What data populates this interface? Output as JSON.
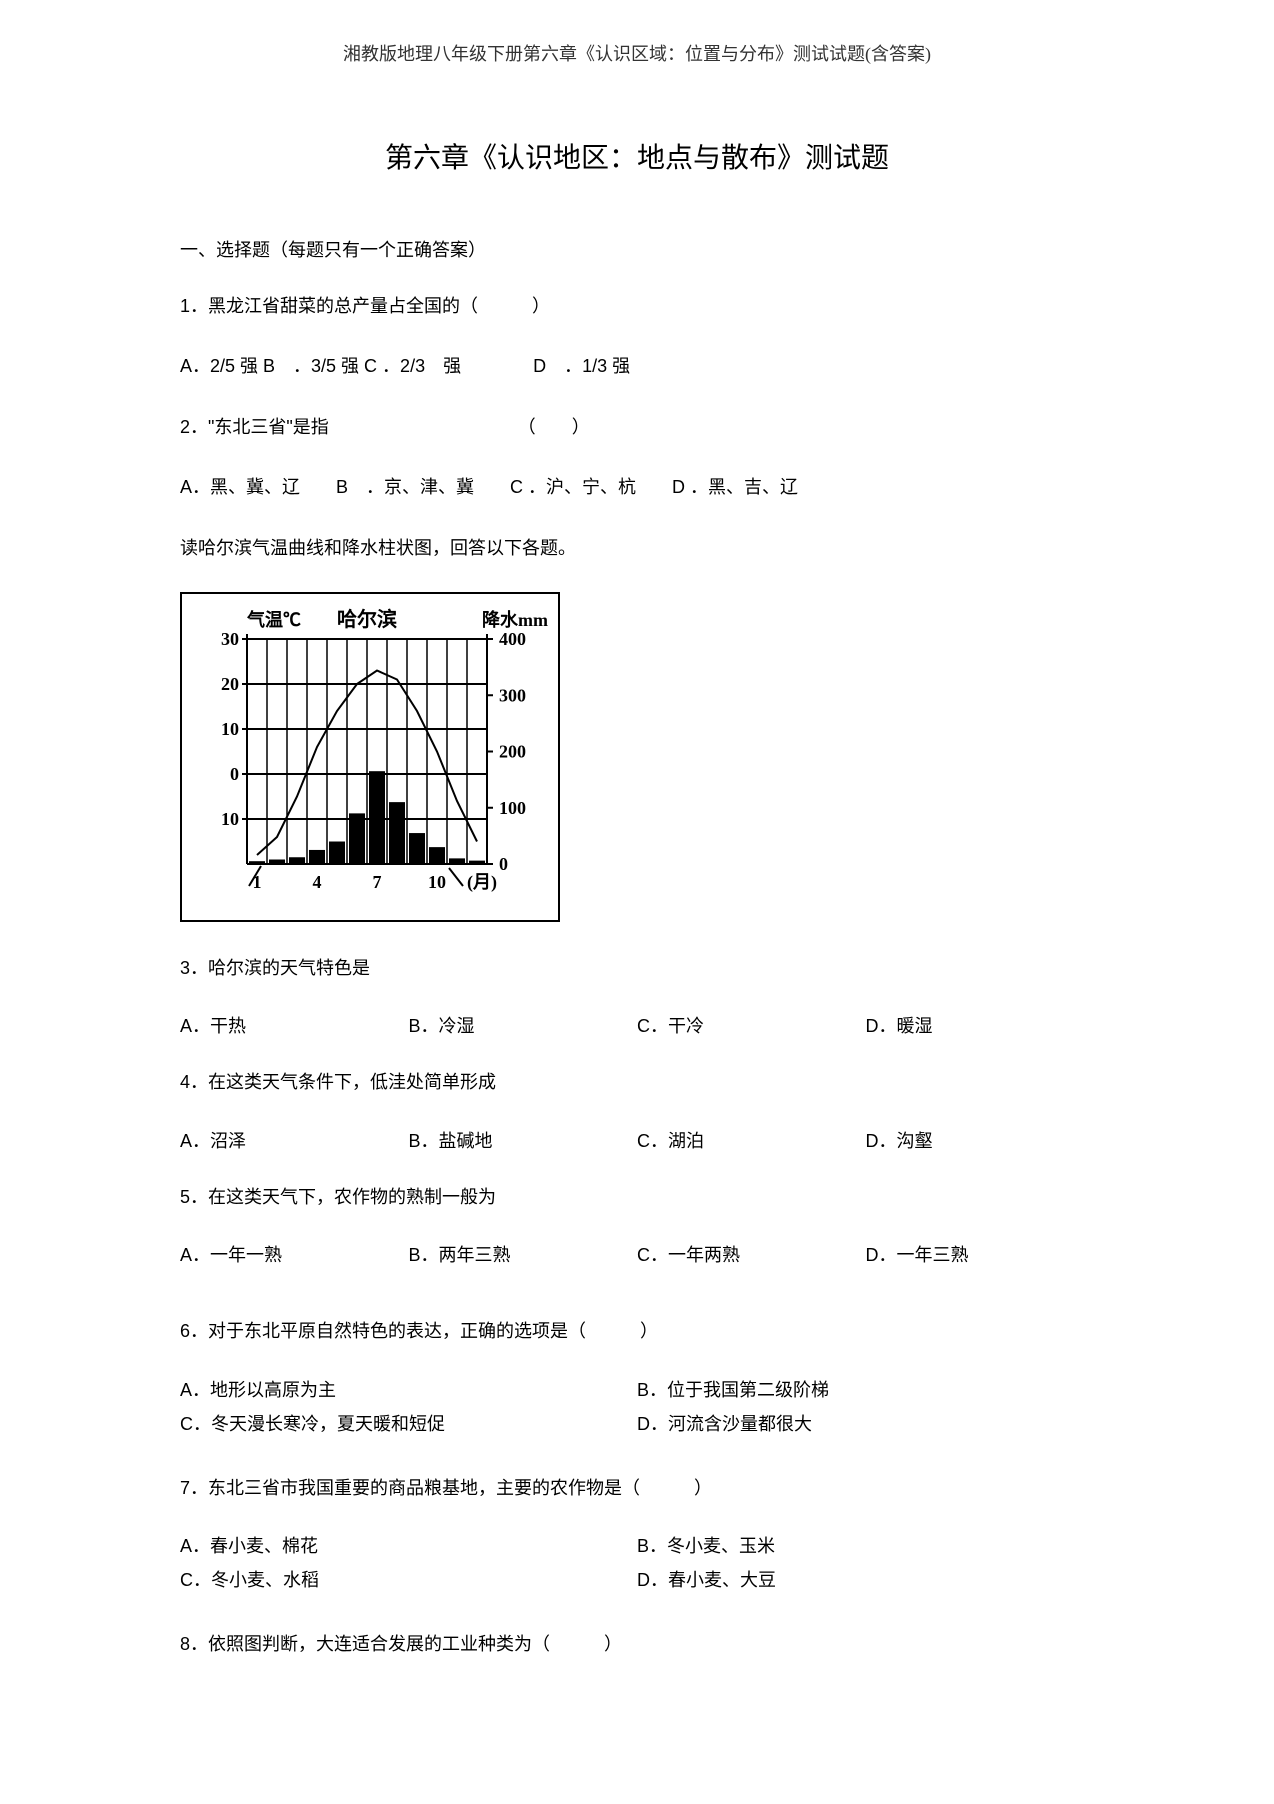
{
  "header": "湘教版地理八年级下册第六章《认识区域：位置与分布》测试试题(含答案)",
  "title": "第六章《认识地区：地点与散布》测试题",
  "section1_header": "一、选择题（每题只有一个正确答案）",
  "q1": {
    "text": "1．黑龙江省甜菜的总产量占全国的（　　　）",
    "options": "A．2/5 强  B　．3/5  强  C ．2/3　强　　　　D　．1/3 强"
  },
  "q2": {
    "text": "2．\"东北三省\"是指　　　　　　　　　　　（　　）",
    "options": "A．黑、冀、辽　　B　．京、津、冀　　C ．沪、宁、杭　　D ．黑、吉、辽"
  },
  "chart_intro": "读哈尔滨气温曲线和降水柱状图，回答以下各题。",
  "chart": {
    "left_label": "气温℃",
    "center_label": "哈尔滨",
    "right_label": "降水mm",
    "left_ticks": [
      "30",
      "20",
      "10",
      "0",
      "10"
    ],
    "right_ticks": [
      "400",
      "300",
      "200",
      "100",
      "0"
    ],
    "x_labels": [
      "1",
      "4",
      "7",
      "10"
    ],
    "x_suffix": "(月)",
    "temp_curve": [
      {
        "month": 1,
        "temp": -18
      },
      {
        "month": 2,
        "temp": -14
      },
      {
        "month": 3,
        "temp": -5
      },
      {
        "month": 4,
        "temp": 6
      },
      {
        "month": 5,
        "temp": 14
      },
      {
        "month": 6,
        "temp": 20
      },
      {
        "month": 7,
        "temp": 23
      },
      {
        "month": 8,
        "temp": 21
      },
      {
        "month": 9,
        "temp": 14
      },
      {
        "month": 10,
        "temp": 5
      },
      {
        "month": 11,
        "temp": -6
      },
      {
        "month": 12,
        "temp": -15
      }
    ],
    "precip_bars": [
      {
        "month": 1,
        "mm": 5
      },
      {
        "month": 2,
        "mm": 8
      },
      {
        "month": 3,
        "mm": 12
      },
      {
        "month": 4,
        "mm": 25
      },
      {
        "month": 5,
        "mm": 40
      },
      {
        "month": 6,
        "mm": 90
      },
      {
        "month": 7,
        "mm": 165
      },
      {
        "month": 8,
        "mm": 110
      },
      {
        "month": 9,
        "mm": 55
      },
      {
        "month": 10,
        "mm": 30
      },
      {
        "month": 11,
        "mm": 10
      },
      {
        "month": 12,
        "mm": 6
      }
    ],
    "colors": {
      "bar_fill": "#000000",
      "line_color": "#000000",
      "grid_color": "#000000",
      "bg": "#ffffff"
    },
    "plot": {
      "left_ylim": [
        -20,
        30
      ],
      "right_ylim": [
        0,
        400
      ],
      "bar_width": 0.8,
      "line_width": 2
    }
  },
  "q3": {
    "text": "3．哈尔滨的天气特色是",
    "A": "A．干热",
    "B": "B．冷湿",
    "C": "C．干冷",
    "D": "D．暖湿"
  },
  "q4": {
    "text": "4．在这类天气条件下，低洼处简单形成",
    "A": "A．沼泽",
    "B": "B．盐碱地",
    "C": "C．湖泊",
    "D": "D．沟壑"
  },
  "q5": {
    "text": "5．在这类天气下，农作物的熟制一般为",
    "A": "A．一年一熟",
    "B": "B．两年三熟",
    "C": "C．一年两熟",
    "D": "D．一年三熟"
  },
  "q6": {
    "text": "6．对于东北平原自然特色的表达，正确的选项是（　　　）",
    "A": "A．地形以高原为主",
    "B": "B．位于我国第二级阶梯",
    "C": "C．冬天漫长寒冷，夏天暖和短促",
    "D": "D．河流含沙量都很大"
  },
  "q7": {
    "text": "7．东北三省市我国重要的商品粮基地，主要的农作物是（　　　）",
    "A": "A．春小麦、棉花",
    "B": "B．冬小麦、玉米",
    "C": "C．冬小麦、水稻",
    "D": "D．春小麦、大豆"
  },
  "q8": {
    "text": "8．依照图判断，大连适合发展的工业种类为（　　　）"
  }
}
